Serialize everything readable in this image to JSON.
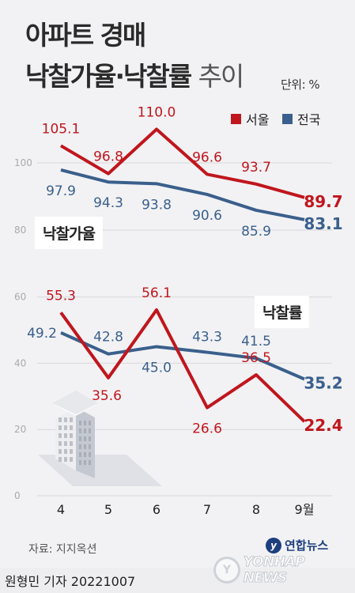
{
  "title_line1": "아파트 경매",
  "title_line2_bold": "낙찰가율·낙찰률",
  "title_line2_light": "추이",
  "unit": "단위: %",
  "source": "자료: 지지옥션",
  "brand": "연합뉴스",
  "watermark": "YONHAP NEWS",
  "byline": "원형민 기자  20221007",
  "colors": {
    "seoul": "#c0161d",
    "national": "#3a5f8c"
  },
  "chart_data": [
    {
      "type": "line",
      "categories": [
        "4",
        "5",
        "6",
        "7",
        "8",
        "9월"
      ],
      "label": "낙찰가율",
      "ylim": [
        80,
        110
      ],
      "ticks": [
        80,
        100
      ],
      "series": [
        {
          "name": "서울",
          "values": [
            105.1,
            96.8,
            110.0,
            96.6,
            93.7,
            89.7
          ]
        },
        {
          "name": "전국",
          "values": [
            97.9,
            94.3,
            93.8,
            90.6,
            85.9,
            83.1
          ]
        }
      ],
      "legend": "top-right"
    },
    {
      "type": "line",
      "categories": [
        "4",
        "5",
        "6",
        "7",
        "8",
        "9월"
      ],
      "label": "낙찰률",
      "ylim": [
        0,
        60
      ],
      "ticks": [
        0,
        20,
        40,
        60
      ],
      "series": [
        {
          "name": "서울",
          "values": [
            55.3,
            35.6,
            56.1,
            26.6,
            36.5,
            22.4
          ]
        },
        {
          "name": "전국",
          "values": [
            49.2,
            42.8,
            45.0,
            43.3,
            41.5,
            35.2
          ]
        }
      ]
    }
  ]
}
